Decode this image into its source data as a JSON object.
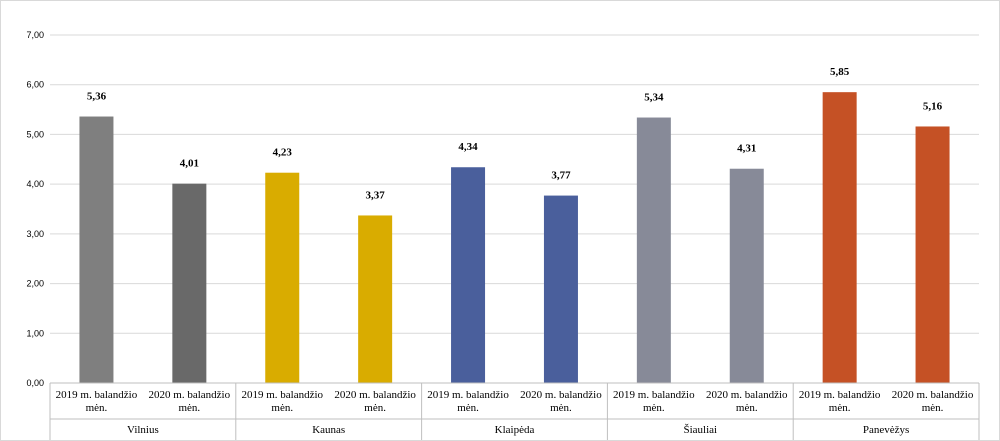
{
  "chart_data": {
    "type": "bar",
    "title": "",
    "xlabel": "",
    "ylabel": "",
    "ylim": [
      0,
      7
    ],
    "y_ticks": [
      "0,00",
      "1,00",
      "2,00",
      "3,00",
      "4,00",
      "5,00",
      "6,00",
      "7,00"
    ],
    "grid": true,
    "legend": "none",
    "groups": [
      {
        "name": "Vilnius",
        "bars": [
          {
            "category": [
              "2019 m. balandžio",
              "mėn."
            ],
            "value": 5.36,
            "label": "5,36",
            "color": "#7f7f7f"
          },
          {
            "category": [
              "2020 m. balandžio",
              "mėn."
            ],
            "value": 4.01,
            "label": "4,01",
            "color": "#696969"
          }
        ]
      },
      {
        "name": "Kaunas",
        "bars": [
          {
            "category": [
              "2019 m. balandžio",
              "mėn."
            ],
            "value": 4.23,
            "label": "4,23",
            "color": "#d9ac00"
          },
          {
            "category": [
              "2020 m. balandžio",
              "mėn."
            ],
            "value": 3.37,
            "label": "3,37",
            "color": "#d9ac00"
          }
        ]
      },
      {
        "name": "Klaipėda",
        "bars": [
          {
            "category": [
              "2019 m. balandžio",
              "mėn."
            ],
            "value": 4.34,
            "label": "4,34",
            "color": "#4a5f9c"
          },
          {
            "category": [
              "2020 m. balandžio",
              "mėn."
            ],
            "value": 3.77,
            "label": "3,77",
            "color": "#4a5f9c"
          }
        ]
      },
      {
        "name": "Šiauliai",
        "bars": [
          {
            "category": [
              "2019 m. balandžio",
              "mėn."
            ],
            "value": 5.34,
            "label": "5,34",
            "color": "#878a98"
          },
          {
            "category": [
              "2020 m. balandžio",
              "mėn."
            ],
            "value": 4.31,
            "label": "4,31",
            "color": "#878a98"
          }
        ]
      },
      {
        "name": "Panevėžys",
        "bars": [
          {
            "category": [
              "2019 m. balandžio",
              "mėn."
            ],
            "value": 5.85,
            "label": "5,85",
            "color": "#c55125"
          },
          {
            "category": [
              "2020 m. balandžio",
              "mėn."
            ],
            "value": 5.16,
            "label": "5,16",
            "color": "#c55125"
          }
        ]
      }
    ]
  }
}
